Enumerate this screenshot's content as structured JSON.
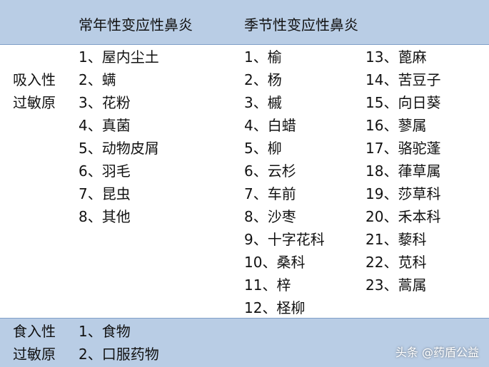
{
  "header": {
    "columns": [
      "常年性变应性鼻炎",
      "季节性变应性鼻炎"
    ]
  },
  "rows": [
    {
      "label": [
        "吸入性",
        "过敏原"
      ],
      "perennial": [
        "1、屋内尘土",
        "2、螨",
        "3、花粉",
        "4、真菌",
        "5、动物皮屑",
        "6、羽毛",
        "7、昆虫",
        "8、其他"
      ],
      "seasonal": [
        "1、榆",
        "2、杨",
        "3、槭",
        "4、白蜡",
        "5、柳",
        "6、云杉",
        "7、车前",
        "8、沙枣",
        "9、十字花科",
        "10、桑科",
        "11、梓",
        "12、柽柳",
        "13、蓖麻",
        "14、苦豆子",
        "15、向日葵",
        "16、蓼属",
        "17、骆驼蓬",
        "18、葎草属",
        "19、莎草科",
        "20、禾本科",
        "21、藜科",
        "22、苋科",
        "23、蒿属"
      ]
    },
    {
      "label": [
        "食入性",
        "过敏原"
      ],
      "perennial": [
        "1、食物",
        "2、口服药物"
      ],
      "seasonal": []
    }
  ],
  "watermark": "头条 @药盾公益"
}
